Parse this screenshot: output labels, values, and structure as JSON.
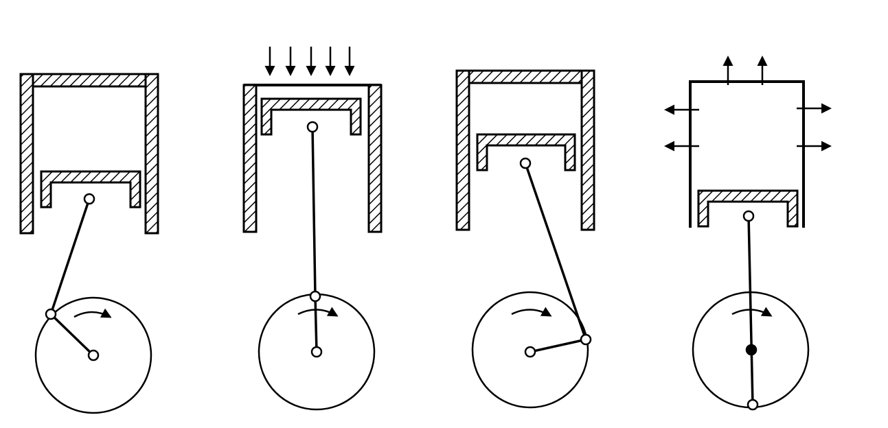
{
  "diagram": {
    "description_visible_text": "",
    "colors": {
      "ink": "#000000",
      "paper": "#ffffff"
    },
    "stages": [
      {
        "id": "stage-1",
        "crank_arrow": "clockwise",
        "external_arrows": "none"
      },
      {
        "id": "stage-2",
        "crank_arrow": "clockwise",
        "external_arrows": "down-onto-cylinder-top"
      },
      {
        "id": "stage-3",
        "crank_arrow": "clockwise",
        "external_arrows": "none"
      },
      {
        "id": "stage-4",
        "crank_arrow": "clockwise",
        "external_arrows": "outward-up-and-sides"
      }
    ]
  }
}
